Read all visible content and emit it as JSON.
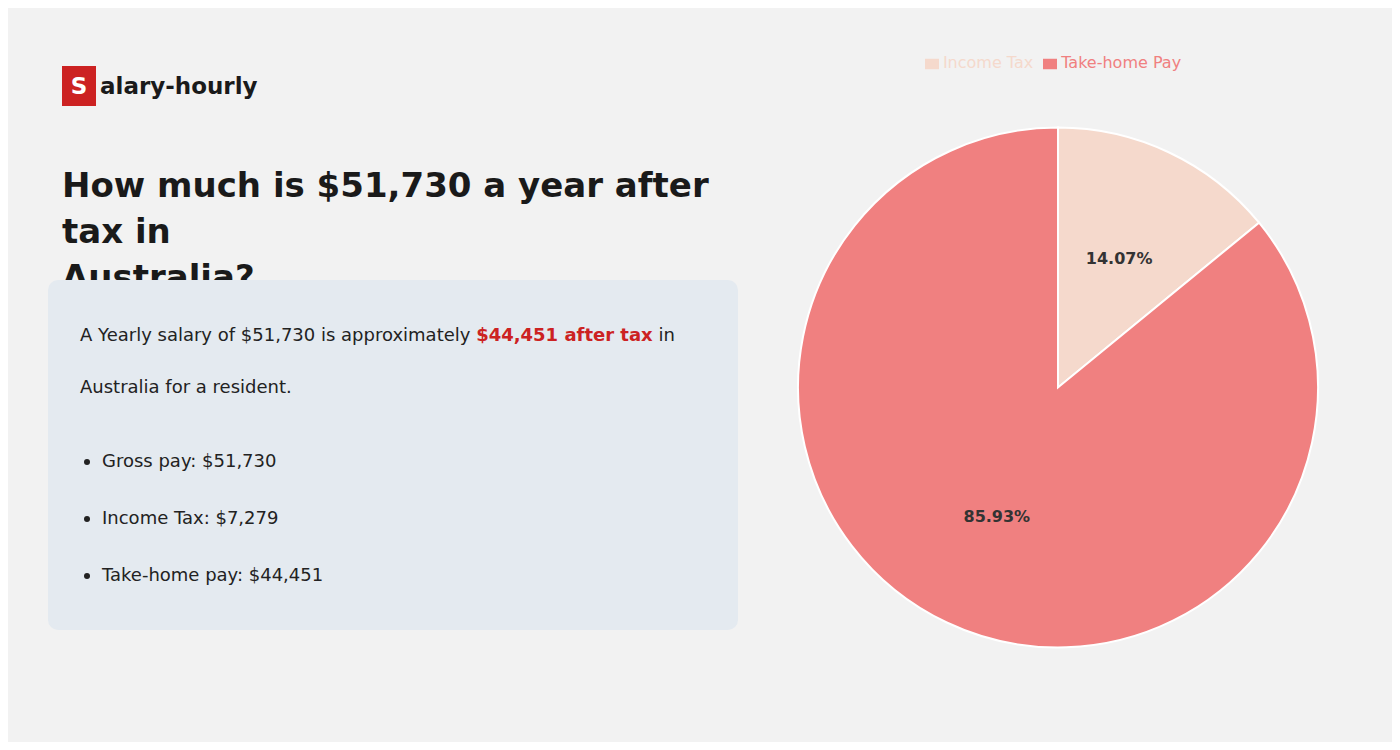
{
  "chart_data": {
    "type": "pie",
    "title": "How much is $51,730 a year after tax in\nAustralia?",
    "annotations": [
      "S",
      "alary-hourly",
      "A Yearly salary of $51,730 is approximately",
      "$44,451 after tax",
      "in",
      "Australia for a resident.",
      "Gross pay: $51,730",
      "Income Tax: $7,279",
      "Take-home pay: $44,451"
    ],
    "categories": [
      "Income Tax",
      "Take-home Pay"
    ],
    "values": [
      14.07,
      85.93
    ],
    "value_labels": [
      "14.07%",
      "85.93%"
    ],
    "data_labels": true,
    "colors": [
      "#f5d9cc",
      "#f08080"
    ],
    "legend": "top"
  }
}
